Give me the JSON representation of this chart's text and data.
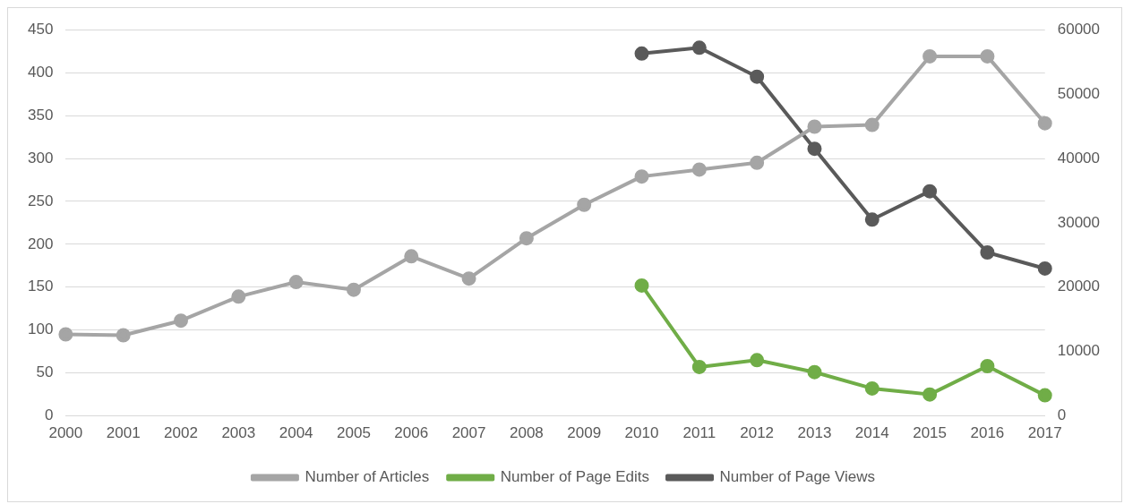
{
  "chart_data": {
    "type": "line",
    "categories": [
      "2000",
      "2001",
      "2002",
      "2003",
      "2004",
      "2005",
      "2006",
      "2007",
      "2008",
      "2009",
      "2010",
      "2011",
      "2012",
      "2013",
      "2014",
      "2015",
      "2016",
      "2017"
    ],
    "series": [
      {
        "name": "Number of Articles",
        "color": "#a5a5a5",
        "values": [
          95,
          94,
          111,
          139,
          156,
          147,
          186,
          160,
          207,
          246,
          279,
          287,
          295,
          337,
          339,
          419,
          419,
          341
        ]
      },
      {
        "name": "Number of Page Edits",
        "color": "#70ad47",
        "values": [
          null,
          null,
          null,
          null,
          null,
          null,
          null,
          null,
          null,
          null,
          152,
          57,
          65,
          51,
          32,
          25,
          58,
          24
        ]
      },
      {
        "name": "Number of Page Views",
        "color": "#5a5a5a",
        "axis": "y2",
        "values": [
          null,
          null,
          null,
          null,
          null,
          null,
          null,
          null,
          null,
          null,
          56300,
          57200,
          52700,
          41500,
          30500,
          34900,
          25400,
          22900
        ]
      }
    ],
    "ylim": [
      0,
      450
    ],
    "yticks": [
      0,
      50,
      100,
      150,
      200,
      250,
      300,
      350,
      400,
      450
    ],
    "y2lim": [
      0,
      60000
    ],
    "y2ticks": [
      0,
      10000,
      20000,
      30000,
      40000,
      50000,
      60000
    ],
    "grid": "y",
    "legend": "bottom",
    "marker": "circle",
    "line_style": "solid"
  }
}
